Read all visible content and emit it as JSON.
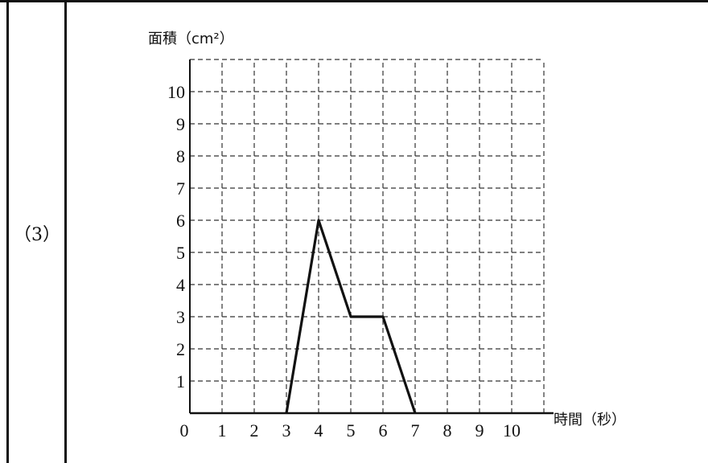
{
  "problem_label": "（3）",
  "chart_data": {
    "type": "line",
    "ylabel": "面積（cm²）",
    "xlabel": "時間（秒）",
    "origin_label": "0",
    "xlim": [
      0,
      11
    ],
    "ylim": [
      0,
      11
    ],
    "x_ticks": [
      1,
      2,
      3,
      4,
      5,
      6,
      7,
      8,
      9,
      10
    ],
    "y_ticks": [
      1,
      2,
      3,
      4,
      5,
      6,
      7,
      8,
      9,
      10
    ],
    "grid": "dashed",
    "series": [
      {
        "points": [
          [
            3,
            0
          ],
          [
            4,
            6
          ],
          [
            5,
            3
          ],
          [
            6,
            3
          ],
          [
            7,
            0
          ]
        ]
      }
    ]
  }
}
